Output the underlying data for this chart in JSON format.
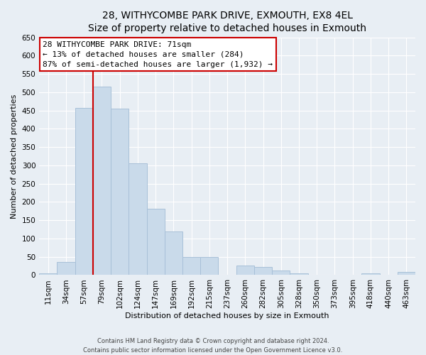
{
  "title": "28, WITHYCOMBE PARK DRIVE, EXMOUTH, EX8 4EL",
  "subtitle": "Size of property relative to detached houses in Exmouth",
  "xlabel": "Distribution of detached houses by size in Exmouth",
  "ylabel": "Number of detached properties",
  "categories": [
    "11sqm",
    "34sqm",
    "57sqm",
    "79sqm",
    "102sqm",
    "124sqm",
    "147sqm",
    "169sqm",
    "192sqm",
    "215sqm",
    "237sqm",
    "260sqm",
    "282sqm",
    "305sqm",
    "328sqm",
    "350sqm",
    "373sqm",
    "395sqm",
    "418sqm",
    "440sqm",
    "463sqm"
  ],
  "values": [
    5,
    35,
    458,
    515,
    455,
    305,
    181,
    120,
    50,
    50,
    0,
    27,
    22,
    12,
    5,
    0,
    0,
    0,
    5,
    0,
    8
  ],
  "bar_color": "#c9daea",
  "bar_edge_color": "#a8c0d8",
  "marker_line_color": "#cc0000",
  "ylim": [
    0,
    650
  ],
  "yticks": [
    0,
    50,
    100,
    150,
    200,
    250,
    300,
    350,
    400,
    450,
    500,
    550,
    600,
    650
  ],
  "annotation_box_bg": "#ffffff",
  "annotation_box_edge": "#cc0000",
  "annotation_line1": "28 WITHYCOMBE PARK DRIVE: 71sqm",
  "annotation_line2": "← 13% of detached houses are smaller (284)",
  "annotation_line3": "87% of semi-detached houses are larger (1,932) →",
  "footer_line1": "Contains HM Land Registry data © Crown copyright and database right 2024.",
  "footer_line2": "Contains public sector information licensed under the Open Government Licence v3.0.",
  "background_color": "#e8eef4",
  "plot_background": "#e8eef4",
  "grid_color": "#ffffff",
  "title_fontsize": 10,
  "subtitle_fontsize": 9,
  "axis_label_fontsize": 8,
  "tick_fontsize": 7.5,
  "annotation_fontsize": 8,
  "footer_fontsize": 6
}
